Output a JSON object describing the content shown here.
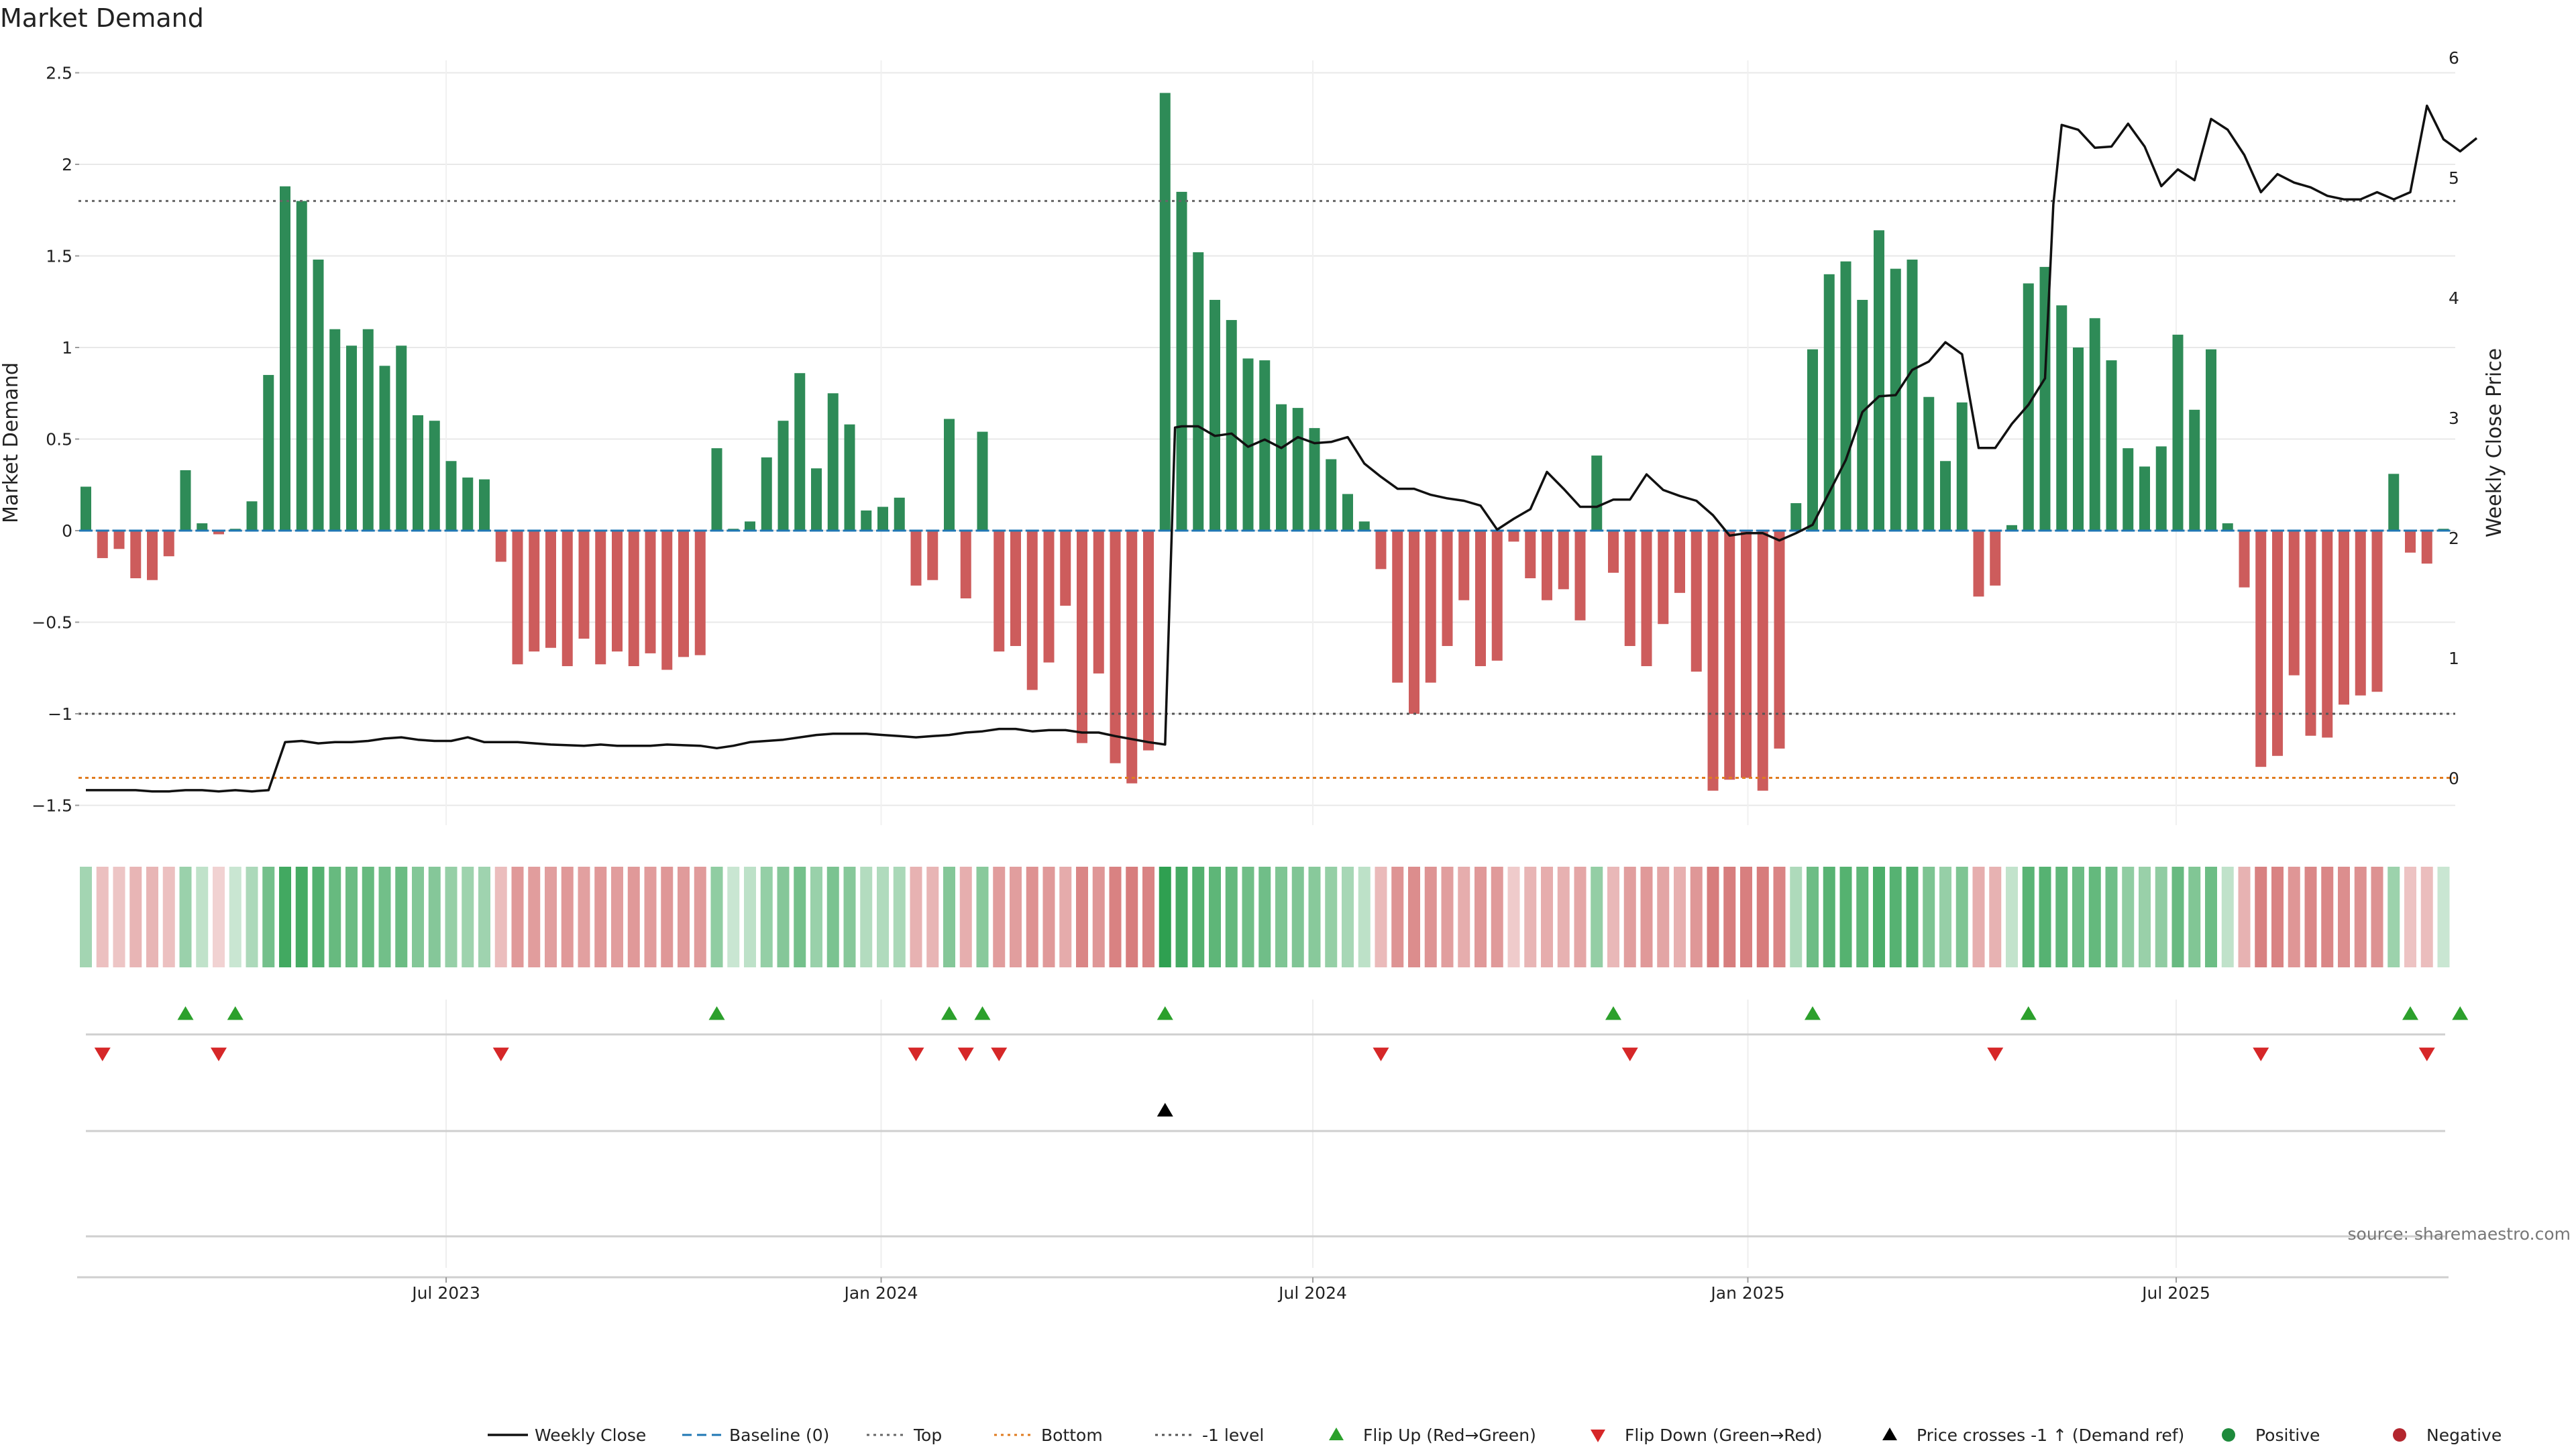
{
  "chart_data": {
    "type": "bar",
    "title": "Market Demand",
    "ylabel_left": "Market Demand",
    "ylabel_right": "Weekly Close Price",
    "source": "source: sharemaestro.com",
    "ylim_left": [
      -1.65,
      2.5
    ],
    "ylim_right": [
      -0.2,
      6.0
    ],
    "left_ticks": [
      2.5,
      2,
      1.5,
      1,
      0.5,
      0,
      -0.5,
      -1,
      -1.5
    ],
    "left_tick_labels": [
      "2.5",
      "2",
      "1.5",
      "1",
      "0.5",
      "0",
      "−0.5",
      "−1",
      "−1.5"
    ],
    "right_ticks": [
      6,
      5,
      4,
      3,
      2,
      1,
      0
    ],
    "right_tick_labels": [
      "6",
      "5",
      "4",
      "3",
      "2",
      "1",
      "0"
    ],
    "reference_lines": {
      "top": 1.8,
      "bottom": -1.35,
      "minus_one": -1.0,
      "baseline": 0
    },
    "x_week_span": [
      0,
      143
    ],
    "x_ticks": [
      {
        "week": 21.7,
        "label": "Jul 2023"
      },
      {
        "week": 47.9,
        "label": "Jan 2024"
      },
      {
        "week": 73.9,
        "label": "Jul 2024"
      },
      {
        "week": 100.1,
        "label": "Jan 2025"
      },
      {
        "week": 125.9,
        "label": "Jul 2025"
      }
    ],
    "demand": [
      0.24,
      -0.15,
      -0.1,
      -0.26,
      -0.27,
      -0.14,
      0.33,
      0.04,
      -0.02,
      0.01,
      0.16,
      0.85,
      1.88,
      1.8,
      1.48,
      1.1,
      1.01,
      1.1,
      0.9,
      1.01,
      0.63,
      0.6,
      0.38,
      0.29,
      0.28,
      -0.17,
      -0.73,
      -0.66,
      -0.64,
      -0.74,
      -0.59,
      -0.73,
      -0.66,
      -0.74,
      -0.67,
      -0.76,
      -0.69,
      -0.68,
      0.45,
      0.01,
      0.05,
      0.4,
      0.6,
      0.86,
      0.34,
      0.75,
      0.58,
      0.11,
      0.13,
      0.18,
      -0.3,
      -0.27,
      0.61,
      -0.37,
      0.54,
      -0.66,
      -0.63,
      -0.87,
      -0.72,
      -0.41,
      -1.16,
      -0.78,
      -1.27,
      -1.38,
      -1.2,
      2.39,
      1.85,
      1.52,
      1.26,
      1.15,
      0.94,
      0.93,
      0.69,
      0.67,
      0.56,
      0.39,
      0.2,
      0.05,
      -0.21,
      -0.83,
      -1.0,
      -0.83,
      -0.63,
      -0.38,
      -0.74,
      -0.71,
      -0.06,
      -0.26,
      -0.38,
      -0.32,
      -0.49,
      0.41,
      -0.23,
      -0.63,
      -0.74,
      -0.51,
      -0.34,
      -0.77,
      -1.42,
      -1.36,
      -1.35,
      -1.42,
      -1.19,
      0.15,
      0.99,
      1.4,
      1.47,
      1.26,
      1.64,
      1.43,
      1.48,
      0.73,
      0.38,
      0.7,
      -0.36,
      -0.3,
      0.03,
      1.35,
      1.44,
      1.23,
      1.0,
      1.16,
      0.93,
      0.45,
      0.35,
      0.46,
      1.07,
      0.66,
      0.99,
      0.04,
      -0.31,
      -1.29,
      -1.23,
      -0.79,
      -1.12,
      -1.13,
      -0.95,
      -0.9,
      -0.88,
      0.31,
      -0.12,
      -0.18,
      0.01
    ],
    "price_points": [
      [
        0,
        -0.1
      ],
      [
        3,
        -0.1
      ],
      [
        4,
        -0.11
      ],
      [
        5,
        -0.11
      ],
      [
        6,
        -0.1
      ],
      [
        7,
        -0.1
      ],
      [
        8,
        -0.11
      ],
      [
        9,
        -0.1
      ],
      [
        10,
        -0.11
      ],
      [
        11,
        -0.1
      ],
      [
        12,
        0.3
      ],
      [
        13,
        0.31
      ],
      [
        14,
        0.29
      ],
      [
        15,
        0.3
      ],
      [
        16,
        0.3
      ],
      [
        17,
        0.31
      ],
      [
        18,
        0.33
      ],
      [
        19,
        0.34
      ],
      [
        20,
        0.32
      ],
      [
        21,
        0.31
      ],
      [
        22,
        0.31
      ],
      [
        23,
        0.34
      ],
      [
        24,
        0.3
      ],
      [
        26,
        0.3
      ],
      [
        28,
        0.28
      ],
      [
        30,
        0.27
      ],
      [
        31,
        0.28
      ],
      [
        32,
        0.27
      ],
      [
        34,
        0.27
      ],
      [
        35,
        0.28
      ],
      [
        37,
        0.27
      ],
      [
        38,
        0.25
      ],
      [
        39,
        0.27
      ],
      [
        40,
        0.3
      ],
      [
        41,
        0.31
      ],
      [
        42,
        0.32
      ],
      [
        44,
        0.36
      ],
      [
        45,
        0.37
      ],
      [
        47,
        0.37
      ],
      [
        48,
        0.36
      ],
      [
        49,
        0.35
      ],
      [
        50,
        0.34
      ],
      [
        51,
        0.35
      ],
      [
        52,
        0.36
      ],
      [
        53,
        0.38
      ],
      [
        54,
        0.39
      ],
      [
        55,
        0.41
      ],
      [
        56,
        0.41
      ],
      [
        57,
        0.39
      ],
      [
        58,
        0.4
      ],
      [
        59,
        0.4
      ],
      [
        60,
        0.38
      ],
      [
        61,
        0.38
      ],
      [
        62,
        0.35
      ],
      [
        64,
        0.3
      ],
      [
        65,
        0.28
      ],
      [
        65.6,
        2.92
      ],
      [
        66,
        2.93
      ],
      [
        67,
        2.93
      ],
      [
        68,
        2.85
      ],
      [
        69,
        2.87
      ],
      [
        70,
        2.76
      ],
      [
        71,
        2.82
      ],
      [
        72,
        2.75
      ],
      [
        73,
        2.84
      ],
      [
        74,
        2.79
      ],
      [
        75,
        2.8
      ],
      [
        76,
        2.84
      ],
      [
        77,
        2.62
      ],
      [
        78,
        2.51
      ],
      [
        79,
        2.41
      ],
      [
        80,
        2.41
      ],
      [
        81,
        2.36
      ],
      [
        82,
        2.33
      ],
      [
        83,
        2.31
      ],
      [
        84,
        2.27
      ],
      [
        85,
        2.07
      ],
      [
        86,
        2.16
      ],
      [
        87,
        2.24
      ],
      [
        88,
        2.55
      ],
      [
        89,
        2.41
      ],
      [
        90,
        2.26
      ],
      [
        91,
        2.26
      ],
      [
        92,
        2.32
      ],
      [
        93,
        2.32
      ],
      [
        94,
        2.53
      ],
      [
        95,
        2.4
      ],
      [
        96,
        2.35
      ],
      [
        97,
        2.31
      ],
      [
        98,
        2.19
      ],
      [
        99,
        2.02
      ],
      [
        100,
        2.04
      ],
      [
        101,
        2.04
      ],
      [
        102,
        1.98
      ],
      [
        103,
        2.04
      ],
      [
        104,
        2.11
      ],
      [
        105,
        2.38
      ],
      [
        106,
        2.65
      ],
      [
        107,
        3.05
      ],
      [
        108,
        3.18
      ],
      [
        109,
        3.19
      ],
      [
        110,
        3.4
      ],
      [
        111,
        3.47
      ],
      [
        112,
        3.63
      ],
      [
        113,
        3.53
      ],
      [
        114,
        2.75
      ],
      [
        115,
        2.75
      ],
      [
        116,
        2.95
      ],
      [
        117,
        3.11
      ],
      [
        118,
        3.33
      ],
      [
        118.5,
        4.78
      ],
      [
        119,
        5.44
      ],
      [
        120,
        5.4
      ],
      [
        121,
        5.25
      ],
      [
        122,
        5.26
      ],
      [
        123,
        5.45
      ],
      [
        124,
        5.26
      ],
      [
        125,
        4.93
      ],
      [
        126,
        5.07
      ],
      [
        127,
        4.98
      ],
      [
        128,
        5.49
      ],
      [
        129,
        5.4
      ],
      [
        130,
        5.19
      ],
      [
        131,
        4.88
      ],
      [
        132,
        5.03
      ],
      [
        133,
        4.96
      ],
      [
        134,
        4.92
      ],
      [
        135,
        4.85
      ],
      [
        136,
        4.82
      ],
      [
        137,
        4.82
      ],
      [
        138,
        4.88
      ],
      [
        139,
        4.82
      ],
      [
        140,
        4.88
      ],
      [
        141,
        5.6
      ],
      [
        142,
        5.32
      ],
      [
        143,
        5.22
      ],
      [
        144,
        5.33
      ]
    ],
    "flip_up_weeks": [
      6,
      9,
      38,
      52,
      54,
      65,
      92,
      104,
      117,
      140,
      143
    ],
    "flip_down_weeks": [
      1,
      8,
      25,
      50,
      53,
      55,
      78,
      93,
      115,
      131,
      141
    ],
    "price_cross_weeks": [
      65
    ],
    "series": [
      {
        "name": "Market Demand (bars)",
        "values_key": "demand"
      },
      {
        "name": "Weekly Close",
        "values_key": "price_points"
      }
    ],
    "legend": {
      "position": "bottom-center",
      "entries": [
        {
          "label": "Weekly Close",
          "marker": "line",
          "color": "#111111"
        },
        {
          "label": "Baseline (0)",
          "marker": "dashed",
          "color": "#1f77b4"
        },
        {
          "label": "Top",
          "marker": "dotted",
          "color": "#666666"
        },
        {
          "label": "Bottom",
          "marker": "dotted",
          "color": "#e07b1f"
        },
        {
          "label": "-1 level",
          "marker": "dotted",
          "color": "#555555"
        },
        {
          "label": "Flip Up (Red→Green)",
          "marker": "triangle-up",
          "color": "#2ca02c"
        },
        {
          "label": "Flip Down (Green→Red)",
          "marker": "triangle-down",
          "color": "#d62728"
        },
        {
          "label": "Price crosses -1 ↑ (Demand ref)",
          "marker": "triangle-up",
          "color": "#000000"
        },
        {
          "label": "Positive",
          "marker": "circle",
          "color": "#1e8a3c"
        },
        {
          "label": "Negative",
          "marker": "circle",
          "color": "#b3262e"
        }
      ]
    },
    "colors": {
      "positive": "#2e8b57",
      "negative": "#cd5c5c",
      "price_line": "#111111",
      "baseline": "#1f77b4",
      "top_line": "#666666",
      "bottom_line": "#e07b1f",
      "minus_one_line": "#555555",
      "flip_up": "#2ca02c",
      "flip_down": "#d62728",
      "grid": "#e8e8e8"
    }
  }
}
